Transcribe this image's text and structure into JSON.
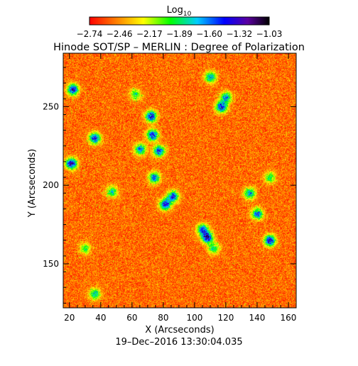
{
  "chart_data": {
    "type": "heatmap",
    "title": "Hinode SOT/SP – MERLIN : Degree of Polarization",
    "xlabel": "X (Arcseconds)",
    "ylabel": "Y (Arcseconds)",
    "xlim": [
      16,
      165
    ],
    "ylim": [
      122,
      284
    ],
    "x_ticks": [
      20,
      40,
      60,
      80,
      100,
      120,
      140,
      160
    ],
    "y_ticks": [
      150,
      200,
      250
    ],
    "timestamp": "19–Dec–2016 13:30:04.035",
    "colorbar": {
      "label_base": "Log",
      "label_sub": "10",
      "range": [
        -2.74,
        -1.03
      ],
      "tick_labels": [
        "−2.74",
        "−2.46",
        "−2.17",
        "−1.89",
        "−1.60",
        "−1.32",
        "−1.03"
      ],
      "colormap": "rainbow"
    },
    "background_level": -2.7,
    "features": [
      {
        "x": 21,
        "y": 214,
        "strength": 1.0
      },
      {
        "x": 22,
        "y": 261,
        "strength": 0.95
      },
      {
        "x": 36,
        "y": 230,
        "strength": 0.9
      },
      {
        "x": 47,
        "y": 196,
        "strength": 0.6
      },
      {
        "x": 65,
        "y": 223,
        "strength": 0.75
      },
      {
        "x": 72,
        "y": 244,
        "strength": 0.95
      },
      {
        "x": 73,
        "y": 232,
        "strength": 0.9
      },
      {
        "x": 74,
        "y": 205,
        "strength": 0.8
      },
      {
        "x": 77,
        "y": 222,
        "strength": 0.85
      },
      {
        "x": 81,
        "y": 188,
        "strength": 0.9
      },
      {
        "x": 86,
        "y": 193,
        "strength": 0.85
      },
      {
        "x": 110,
        "y": 269,
        "strength": 0.7
      },
      {
        "x": 117,
        "y": 250,
        "strength": 0.9
      },
      {
        "x": 120,
        "y": 256,
        "strength": 0.7
      },
      {
        "x": 108,
        "y": 167,
        "strength": 1.0
      },
      {
        "x": 105,
        "y": 172,
        "strength": 0.8
      },
      {
        "x": 135,
        "y": 195,
        "strength": 0.7
      },
      {
        "x": 140,
        "y": 182,
        "strength": 0.8
      },
      {
        "x": 148,
        "y": 165,
        "strength": 0.95
      },
      {
        "x": 148,
        "y": 205,
        "strength": 0.5
      },
      {
        "x": 62,
        "y": 258,
        "strength": 0.5
      },
      {
        "x": 36,
        "y": 131,
        "strength": 0.6
      },
      {
        "x": 30,
        "y": 160,
        "strength": 0.45
      },
      {
        "x": 112,
        "y": 160,
        "strength": 0.55
      }
    ]
  }
}
